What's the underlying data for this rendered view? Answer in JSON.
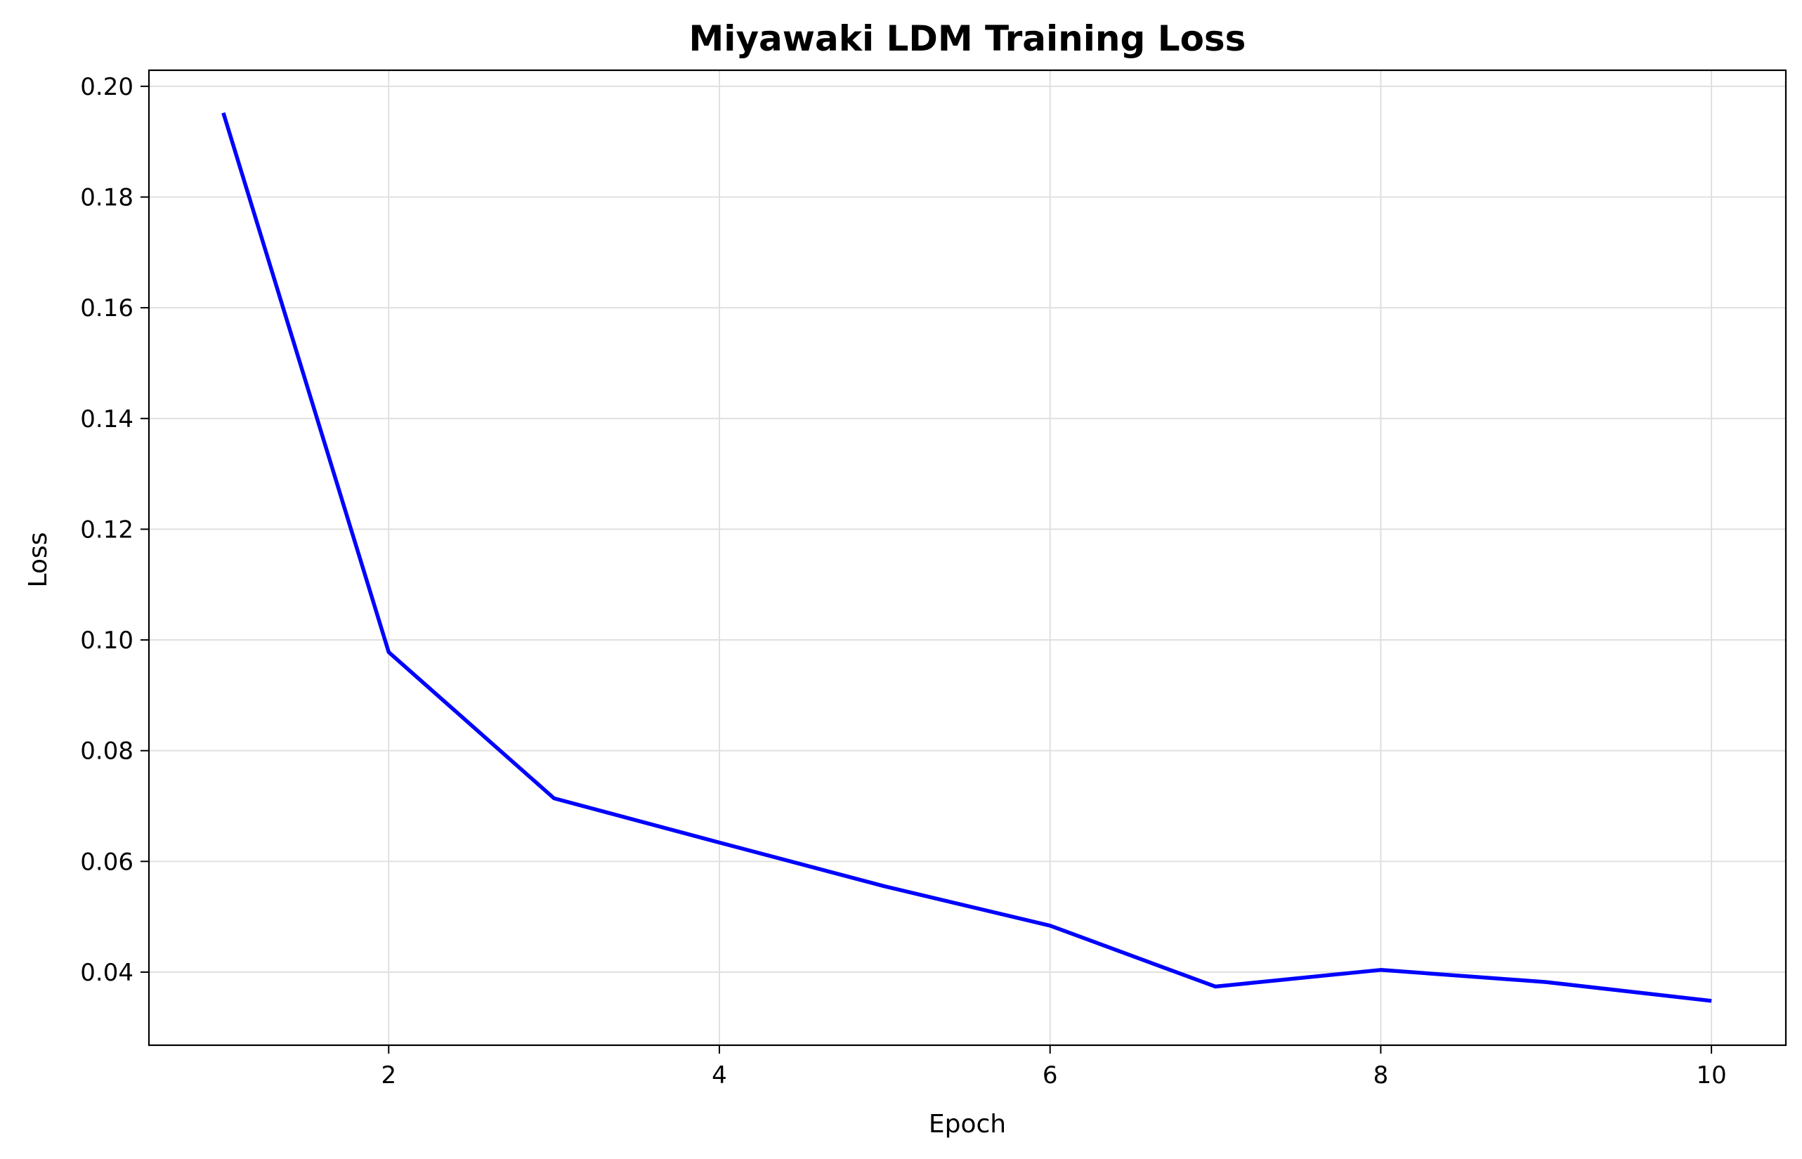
{
  "chart_data": {
    "type": "line",
    "title": "Miyawaki LDM Training Loss",
    "xlabel": "Epoch",
    "ylabel": "Loss",
    "x": [
      1,
      2,
      3,
      4,
      5,
      6,
      7,
      8,
      9,
      10
    ],
    "series": [
      {
        "values": [
          0.1952,
          0.0978,
          0.0714,
          0.0634,
          0.0555,
          0.0484,
          0.0374,
          0.0404,
          0.0382,
          0.0348
        ],
        "color": "#0000ff"
      }
    ],
    "xlim": [
      0.55,
      10.45
    ],
    "ylim": [
      0.0268,
      0.2029
    ],
    "xticks": [
      2,
      4,
      6,
      8,
      10
    ],
    "xtick_labels": [
      "2",
      "4",
      "6",
      "8",
      "10"
    ],
    "yticks": [
      0.04,
      0.06,
      0.08,
      0.1,
      0.12,
      0.14,
      0.16,
      0.18,
      0.2
    ],
    "ytick_labels": [
      "0.04",
      "0.06",
      "0.08",
      "0.10",
      "0.12",
      "0.14",
      "0.16",
      "0.18",
      "0.20"
    ],
    "grid": true,
    "legend": false,
    "colors": {
      "line": "#0000ff",
      "grid": "#e0e0e0",
      "axes": "#000000"
    }
  }
}
